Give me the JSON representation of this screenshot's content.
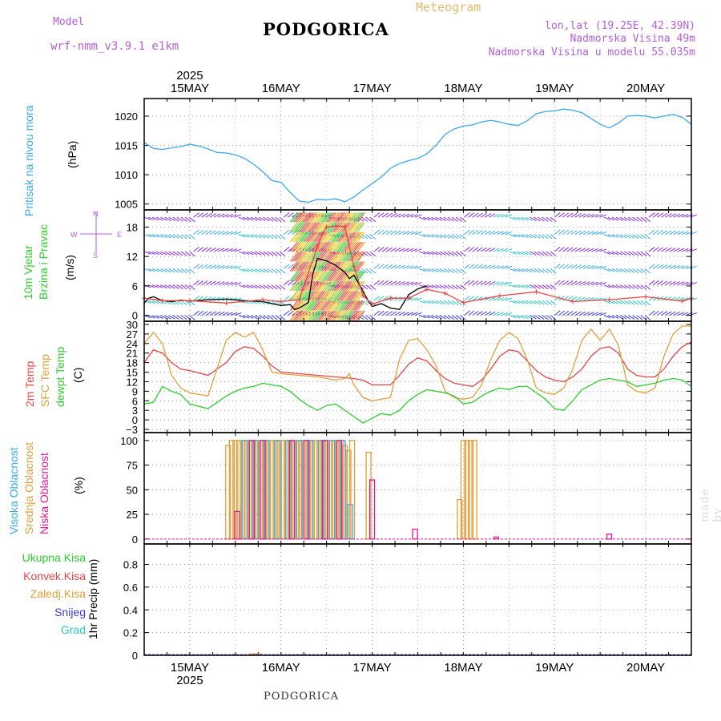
{
  "header": {
    "model_label": "Model",
    "model_name": "wrf-nmm_v3.9.1 e1km",
    "station": "PODGORICA",
    "meteogram_label": "Meteogram",
    "lonlat": "lon,lat (19.25E, 42.39N)",
    "altitude": "Nadmorska Visina 49m",
    "model_altitude": "Nadmorska Visina u modelu 55.035m",
    "year": "2025",
    "footer_station": "PODGORICA",
    "credit": "made by Angel"
  },
  "colors": {
    "cyan": "#3aa9e8",
    "purple": "#b03fd8",
    "green": "#2ecc2e",
    "red": "#e64545",
    "orange": "#e0a03c",
    "magenta": "#e0189a",
    "blue": "#3c3cd8",
    "teal": "#2cc4c4",
    "header_purple": "#b55fd8",
    "header_orange": "#e8b86a"
  },
  "chart_data": [
    {
      "type": "line",
      "id": "pressure",
      "x_unit": "day of May 2025",
      "days": [
        "15MAY",
        "16MAY",
        "17MAY",
        "18MAY",
        "19MAY",
        "20MAY"
      ],
      "ylabels": [
        "Pritisak na nivou mora",
        "(hPa)"
      ],
      "yticks": [
        1005,
        1010,
        1015,
        1020
      ],
      "ylim": [
        1004,
        1023
      ],
      "xlim": [
        14.5,
        20.5
      ],
      "series": [
        {
          "color": "#3aa9e8",
          "x": [
            14.5,
            14.6,
            14.7,
            14.8,
            14.9,
            15.0,
            15.1,
            15.2,
            15.3,
            15.4,
            15.5,
            15.6,
            15.7,
            15.8,
            15.9,
            16.0,
            16.1,
            16.2,
            16.3,
            16.4,
            16.5,
            16.6,
            16.7,
            16.8,
            16.9,
            17.0,
            17.1,
            17.2,
            17.3,
            17.4,
            17.5,
            17.6,
            17.7,
            17.8,
            17.9,
            18.0,
            18.1,
            18.2,
            18.3,
            18.4,
            18.5,
            18.6,
            18.7,
            18.8,
            18.9,
            19.0,
            19.1,
            19.2,
            19.3,
            19.4,
            19.5,
            19.6,
            19.7,
            19.8,
            19.9,
            20.0,
            20.1,
            20.2,
            20.3,
            20.4,
            20.5
          ],
          "y": [
            1015.5,
            1014.5,
            1014.3,
            1014.6,
            1014.8,
            1015.2,
            1014.9,
            1014.4,
            1013.8,
            1013.7,
            1013.4,
            1012.8,
            1011.8,
            1010.5,
            1009.0,
            1008.7,
            1007.0,
            1005.5,
            1005.3,
            1005.8,
            1005.7,
            1005.9,
            1005.4,
            1006.2,
            1007.4,
            1008.5,
            1009.6,
            1011.1,
            1011.9,
            1012.4,
            1012.8,
            1013.6,
            1015.0,
            1016.9,
            1017.8,
            1018.3,
            1018.5,
            1019.0,
            1019.3,
            1019.0,
            1018.6,
            1018.4,
            1019.2,
            1020.4,
            1020.8,
            1020.9,
            1021.2,
            1021.0,
            1020.6,
            1019.6,
            1018.6,
            1018.0,
            1018.8,
            1020.0,
            1020.1,
            1020.0,
            1019.7,
            1020.0,
            1020.3,
            1019.8,
            1018.6
          ]
        }
      ]
    },
    {
      "type": "line",
      "id": "wind",
      "x_unit": "day of May 2025",
      "ylabels": [
        "10m Vjetar",
        "Brzina i Pravac",
        "(m/s)"
      ],
      "direction_legend": [
        "N",
        "S",
        "E",
        "W"
      ],
      "yticks": [
        0,
        6,
        12,
        18
      ],
      "ylim": [
        -1.2,
        21.5
      ],
      "xlim": [
        14.5,
        20.5
      ],
      "series": [
        {
          "name": "speed",
          "color": "#000000",
          "x": [
            14.5,
            14.55,
            14.6,
            14.7,
            14.8,
            14.9,
            15.0,
            15.2,
            15.4,
            15.6,
            15.8,
            16.0,
            16.1,
            16.15,
            16.2,
            16.3,
            16.35,
            16.4,
            16.5,
            16.6,
            16.7,
            16.75,
            16.8,
            16.9,
            16.95,
            17.0,
            17.1,
            17.2,
            17.3,
            17.4,
            17.5,
            17.6
          ],
          "y": [
            2.5,
            3.5,
            3.8,
            3.0,
            2.8,
            3.1,
            2.9,
            3.2,
            3.3,
            3.0,
            2.8,
            2.0,
            2.2,
            1.2,
            1.5,
            2.6,
            8.5,
            11.6,
            11.1,
            10.2,
            8.8,
            7.5,
            8.2,
            4.9,
            3.2,
            1.8,
            2.4,
            1.5,
            1.2,
            4.2,
            5.4,
            6.0
          ]
        },
        {
          "name": "gust",
          "color": "#e64545",
          "x": [
            14.5,
            14.7,
            15.0,
            15.4,
            15.8,
            16.0,
            16.2,
            16.4,
            16.45,
            16.5,
            16.6,
            16.7,
            16.8,
            16.9,
            17.0,
            17.2,
            17.4,
            17.6,
            17.8,
            18.0,
            18.4,
            18.8,
            19.2,
            19.6,
            20.0,
            20.4,
            20.5
          ],
          "y": [
            3.5,
            3.0,
            3.0,
            2.5,
            3.2,
            2.8,
            3.2,
            14.0,
            16.5,
            18.0,
            18.2,
            18.1,
            10.0,
            4.0,
            2.3,
            3.5,
            3.5,
            5.3,
            4.5,
            2.6,
            4.0,
            4.8,
            2.8,
            3.2,
            3.8,
            2.9,
            3.5
          ]
        }
      ]
    },
    {
      "type": "line",
      "id": "temperature",
      "x_unit": "day of May 2025",
      "ylabels": [
        "2m Temp",
        "SFC Temp",
        "dewpt Temp",
        "(C)"
      ],
      "yticks": [
        -3,
        0,
        3,
        6,
        9,
        12,
        15,
        18,
        21,
        24,
        27,
        30
      ],
      "ylim": [
        -4,
        31
      ],
      "xlim": [
        14.5,
        20.5
      ],
      "series": [
        {
          "name": "2m Temp",
          "color": "#e64545",
          "x": [
            14.5,
            14.6,
            14.7,
            14.8,
            14.9,
            15.0,
            15.2,
            15.4,
            15.5,
            15.6,
            15.7,
            15.8,
            15.9,
            16.0,
            16.2,
            16.4,
            16.6,
            16.8,
            16.9,
            17.0,
            17.2,
            17.3,
            17.4,
            17.5,
            17.6,
            17.7,
            17.8,
            17.9,
            18.0,
            18.1,
            18.2,
            18.3,
            18.4,
            18.5,
            18.6,
            18.7,
            18.8,
            18.9,
            19.0,
            19.1,
            19.2,
            19.3,
            19.4,
            19.5,
            19.6,
            19.7,
            19.8,
            19.9,
            20.0,
            20.1,
            20.2,
            20.3,
            20.4,
            20.5
          ],
          "y": [
            18.0,
            22.0,
            21.0,
            18.0,
            16.0,
            15.5,
            14.0,
            18.0,
            21.5,
            23.0,
            22.5,
            20.0,
            17.0,
            15.0,
            14.5,
            14.0,
            13.5,
            13.0,
            12.5,
            11.0,
            11.0,
            14.0,
            17.5,
            19.5,
            18.5,
            15.5,
            13.0,
            11.5,
            11.0,
            10.5,
            12.5,
            16.0,
            20.0,
            22.0,
            21.5,
            18.5,
            15.5,
            13.5,
            12.5,
            12.0,
            13.5,
            16.0,
            20.0,
            22.5,
            23.0,
            21.0,
            16.0,
            14.0,
            13.5,
            13.5,
            16.0,
            20.0,
            23.0,
            24.5
          ]
        },
        {
          "name": "SFC Temp",
          "color": "#e0a03c",
          "x": [
            14.5,
            14.6,
            14.7,
            14.8,
            14.9,
            15.0,
            15.2,
            15.4,
            15.5,
            15.6,
            15.7,
            15.8,
            15.9,
            16.0,
            16.2,
            16.4,
            16.6,
            16.7,
            16.75,
            16.8,
            16.9,
            17.0,
            17.2,
            17.3,
            17.4,
            17.5,
            17.6,
            17.7,
            17.8,
            17.9,
            18.0,
            18.1,
            18.2,
            18.3,
            18.4,
            18.5,
            18.6,
            18.7,
            18.8,
            18.9,
            19.0,
            19.1,
            19.2,
            19.3,
            19.4,
            19.5,
            19.6,
            19.7,
            19.8,
            19.9,
            20.0,
            20.1,
            20.2,
            20.3,
            20.4,
            20.5
          ],
          "y": [
            24.0,
            27.5,
            24.0,
            14.0,
            10.0,
            8.5,
            7.5,
            25.0,
            27.5,
            26.0,
            27.5,
            22.0,
            15.0,
            14.5,
            14.0,
            13.5,
            12.5,
            13.0,
            14.5,
            11.0,
            7.0,
            6.0,
            7.0,
            19.0,
            25.0,
            25.5,
            22.0,
            17.0,
            9.0,
            7.0,
            6.5,
            7.0,
            11.0,
            19.0,
            25.0,
            27.5,
            25.5,
            19.0,
            10.0,
            8.5,
            8.0,
            10.0,
            16.0,
            25.0,
            28.5,
            25.0,
            28.5,
            23.5,
            11.0,
            9.0,
            8.5,
            10.0,
            20.0,
            27.0,
            29.5,
            29.5
          ]
        },
        {
          "name": "dewpt Temp",
          "color": "#2ecc2e",
          "x": [
            14.5,
            14.6,
            14.7,
            14.8,
            14.9,
            15.0,
            15.2,
            15.4,
            15.5,
            15.6,
            15.7,
            15.8,
            15.9,
            16.0,
            16.1,
            16.2,
            16.3,
            16.4,
            16.5,
            16.6,
            16.7,
            16.8,
            16.9,
            17.0,
            17.1,
            17.2,
            17.3,
            17.4,
            17.5,
            17.6,
            17.7,
            17.8,
            17.9,
            18.0,
            18.1,
            18.2,
            18.3,
            18.4,
            18.5,
            18.6,
            18.7,
            18.8,
            18.9,
            19.0,
            19.1,
            19.2,
            19.3,
            19.4,
            19.5,
            19.6,
            19.7,
            19.8,
            19.9,
            20.0,
            20.1,
            20.2,
            20.3,
            20.4,
            20.5
          ],
          "y": [
            5.0,
            5.5,
            10.5,
            9.0,
            8.0,
            5.0,
            3.5,
            7.5,
            9.0,
            10.0,
            10.5,
            11.5,
            11.0,
            10.5,
            9.0,
            6.5,
            4.5,
            3.0,
            4.5,
            5.0,
            3.0,
            1.0,
            -1.0,
            0.5,
            2.0,
            1.5,
            3.0,
            6.0,
            8.0,
            9.5,
            9.0,
            8.5,
            7.5,
            5.0,
            5.5,
            7.5,
            9.0,
            10.0,
            9.5,
            10.5,
            10.5,
            8.5,
            6.5,
            3.5,
            3.0,
            6.0,
            9.5,
            11.0,
            12.5,
            13.0,
            12.5,
            12.0,
            10.5,
            11.0,
            11.5,
            12.5,
            13.0,
            12.5,
            10.5
          ]
        }
      ]
    },
    {
      "type": "bar",
      "id": "clouds",
      "x_unit": "day of May 2025",
      "ylabels": [
        "Visoka Oblacnost",
        "Srednja Oblacnost",
        "Niska Oblacnost",
        "(%)"
      ],
      "yticks": [
        0,
        25,
        50,
        75,
        100
      ],
      "ylim": [
        -5,
        108
      ],
      "xlim": [
        14.5,
        20.5
      ],
      "series": [
        {
          "name": "Srednja Oblacnost",
          "color": "#e0a03c",
          "x": [
            15.42,
            15.46,
            15.5,
            15.54,
            15.58,
            15.62,
            15.66,
            15.7,
            15.74,
            15.78,
            15.82,
            15.86,
            15.9,
            15.94,
            15.98,
            16.02,
            16.06,
            16.1,
            16.14,
            16.18,
            16.22,
            16.26,
            16.3,
            16.34,
            16.38,
            16.42,
            16.46,
            16.5,
            16.54,
            16.58,
            16.62,
            16.66,
            16.7,
            16.74,
            16.78,
            16.96,
            17.96,
            18.0,
            18.04,
            18.08,
            18.12
          ],
          "y": [
            95,
            100,
            100,
            100,
            100,
            100,
            100,
            100,
            100,
            100,
            100,
            100,
            100,
            100,
            100,
            100,
            100,
            100,
            100,
            100,
            100,
            100,
            100,
            100,
            100,
            100,
            100,
            100,
            100,
            100,
            100,
            100,
            95,
            90,
            100,
            88,
            40,
            100,
            100,
            100,
            100
          ]
        },
        {
          "name": "Visoka Oblacnost",
          "color": "#3aa9e8",
          "x": [
            15.6,
            15.72,
            15.84,
            15.96,
            16.08,
            16.2,
            16.32,
            16.44,
            16.56,
            16.68,
            16.76
          ],
          "y": [
            100,
            100,
            100,
            100,
            100,
            100,
            100,
            100,
            100,
            100,
            35
          ]
        },
        {
          "name": "Niska Oblacnost",
          "color": "#e0189a",
          "x": [
            15.52,
            15.68,
            15.8,
            16.12,
            16.28,
            16.48,
            16.64,
            17.0,
            17.47,
            18.36,
            19.6
          ],
          "y": [
            28,
            100,
            100,
            100,
            100,
            100,
            100,
            60,
            10,
            2,
            5
          ]
        }
      ]
    },
    {
      "type": "bar",
      "id": "precipitation",
      "x_unit": "day of May 2025",
      "ylabels": [
        "1hr Precip (mm)"
      ],
      "legend": [
        "Ukupna Kisa",
        "Konvek.Kisa",
        "Zaledj.Kisa",
        "Snijeg",
        "Grad"
      ],
      "yticks": [
        0,
        0.2,
        0.4,
        0.6,
        0.8
      ],
      "ytick_labels": [
        "0",
        "0.2",
        "0.4",
        "0.6",
        "0.8"
      ],
      "ylim": [
        0,
        0.98
      ],
      "xlim": [
        14.5,
        20.5
      ],
      "series": [
        {
          "name": "Zaledj.Kisa",
          "color": "#e0a03c",
          "x": [
            15.68,
            15.72,
            15.76
          ],
          "y": [
            0.01,
            0.01,
            0.01
          ]
        }
      ]
    }
  ]
}
